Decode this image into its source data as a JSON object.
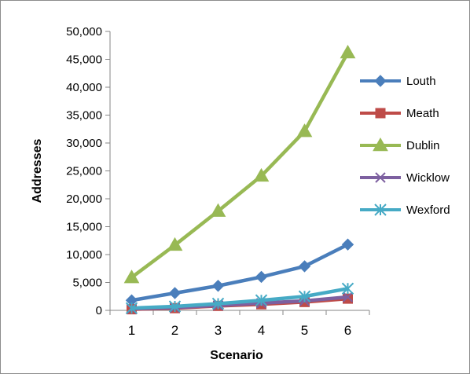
{
  "chart_data": {
    "type": "line",
    "xlabel": "Scenario",
    "ylabel": "Addresses",
    "x": [
      1,
      2,
      3,
      4,
      5,
      6
    ],
    "ylim": [
      0,
      50000
    ],
    "yticks": [
      0,
      5000,
      10000,
      15000,
      20000,
      25000,
      30000,
      35000,
      40000,
      45000,
      50000
    ],
    "ytick_labels": [
      "0",
      "5,000",
      "10,000",
      "15,000",
      "20,000",
      "25,000",
      "30,000",
      "35,000",
      "40,000",
      "45,000",
      "50,000"
    ],
    "grid": false,
    "legend_position": "right",
    "series": [
      {
        "name": "Louth",
        "color": "#4a7ebb",
        "marker": "diamond",
        "values": [
          1800,
          3100,
          4400,
          6000,
          7900,
          11800
        ]
      },
      {
        "name": "Meath",
        "color": "#be4b48",
        "marker": "square",
        "values": [
          200,
          400,
          800,
          1100,
          1500,
          2100
        ]
      },
      {
        "name": "Dublin",
        "color": "#98b954",
        "marker": "triangle",
        "values": [
          5900,
          11700,
          17800,
          24100,
          32100,
          46200
        ]
      },
      {
        "name": "Wicklow",
        "color": "#7d60a0",
        "marker": "x",
        "values": [
          300,
          500,
          900,
          1300,
          1700,
          2400
        ]
      },
      {
        "name": "Wexford",
        "color": "#46aac5",
        "marker": "star",
        "values": [
          400,
          700,
          1200,
          1800,
          2500,
          3900
        ]
      }
    ]
  }
}
